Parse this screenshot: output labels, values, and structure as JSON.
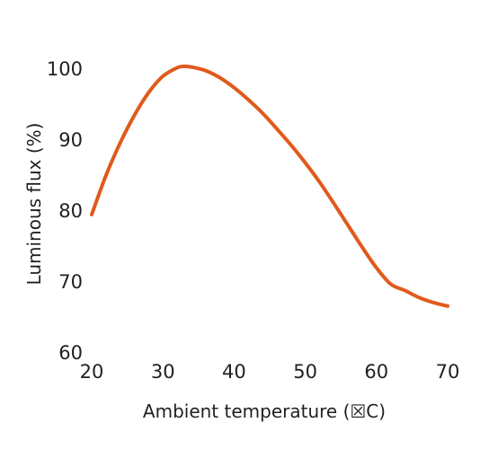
{
  "chart_data": {
    "type": "line",
    "title": "",
    "xlabel": "Ambient temperature (☒C)",
    "ylabel": "Luminous flux (%)",
    "xlim": [
      20,
      70
    ],
    "ylim": [
      60,
      100
    ],
    "x_ticks": [
      "20",
      "30",
      "40",
      "50",
      "60",
      "70"
    ],
    "y_ticks": [
      "60",
      "70",
      "80",
      "90",
      "100"
    ],
    "grid": false,
    "legend": "none",
    "series": [
      {
        "color": "#e05a1c",
        "x": [
          20,
          22,
          24,
          26,
          28,
          30,
          32,
          33,
          34,
          36,
          38,
          40,
          42,
          44,
          46,
          48,
          50,
          52,
          54,
          56,
          58,
          60,
          62,
          64,
          66,
          68,
          70
        ],
        "y": [
          79.5,
          85.0,
          89.6,
          93.5,
          96.7,
          99.0,
          100.2,
          100.4,
          100.3,
          99.8,
          98.8,
          97.4,
          95.7,
          93.8,
          91.6,
          89.3,
          86.8,
          84.1,
          81.1,
          78.0,
          74.9,
          72.0,
          69.7,
          68.8,
          67.8,
          67.1,
          66.6
        ]
      }
    ]
  }
}
